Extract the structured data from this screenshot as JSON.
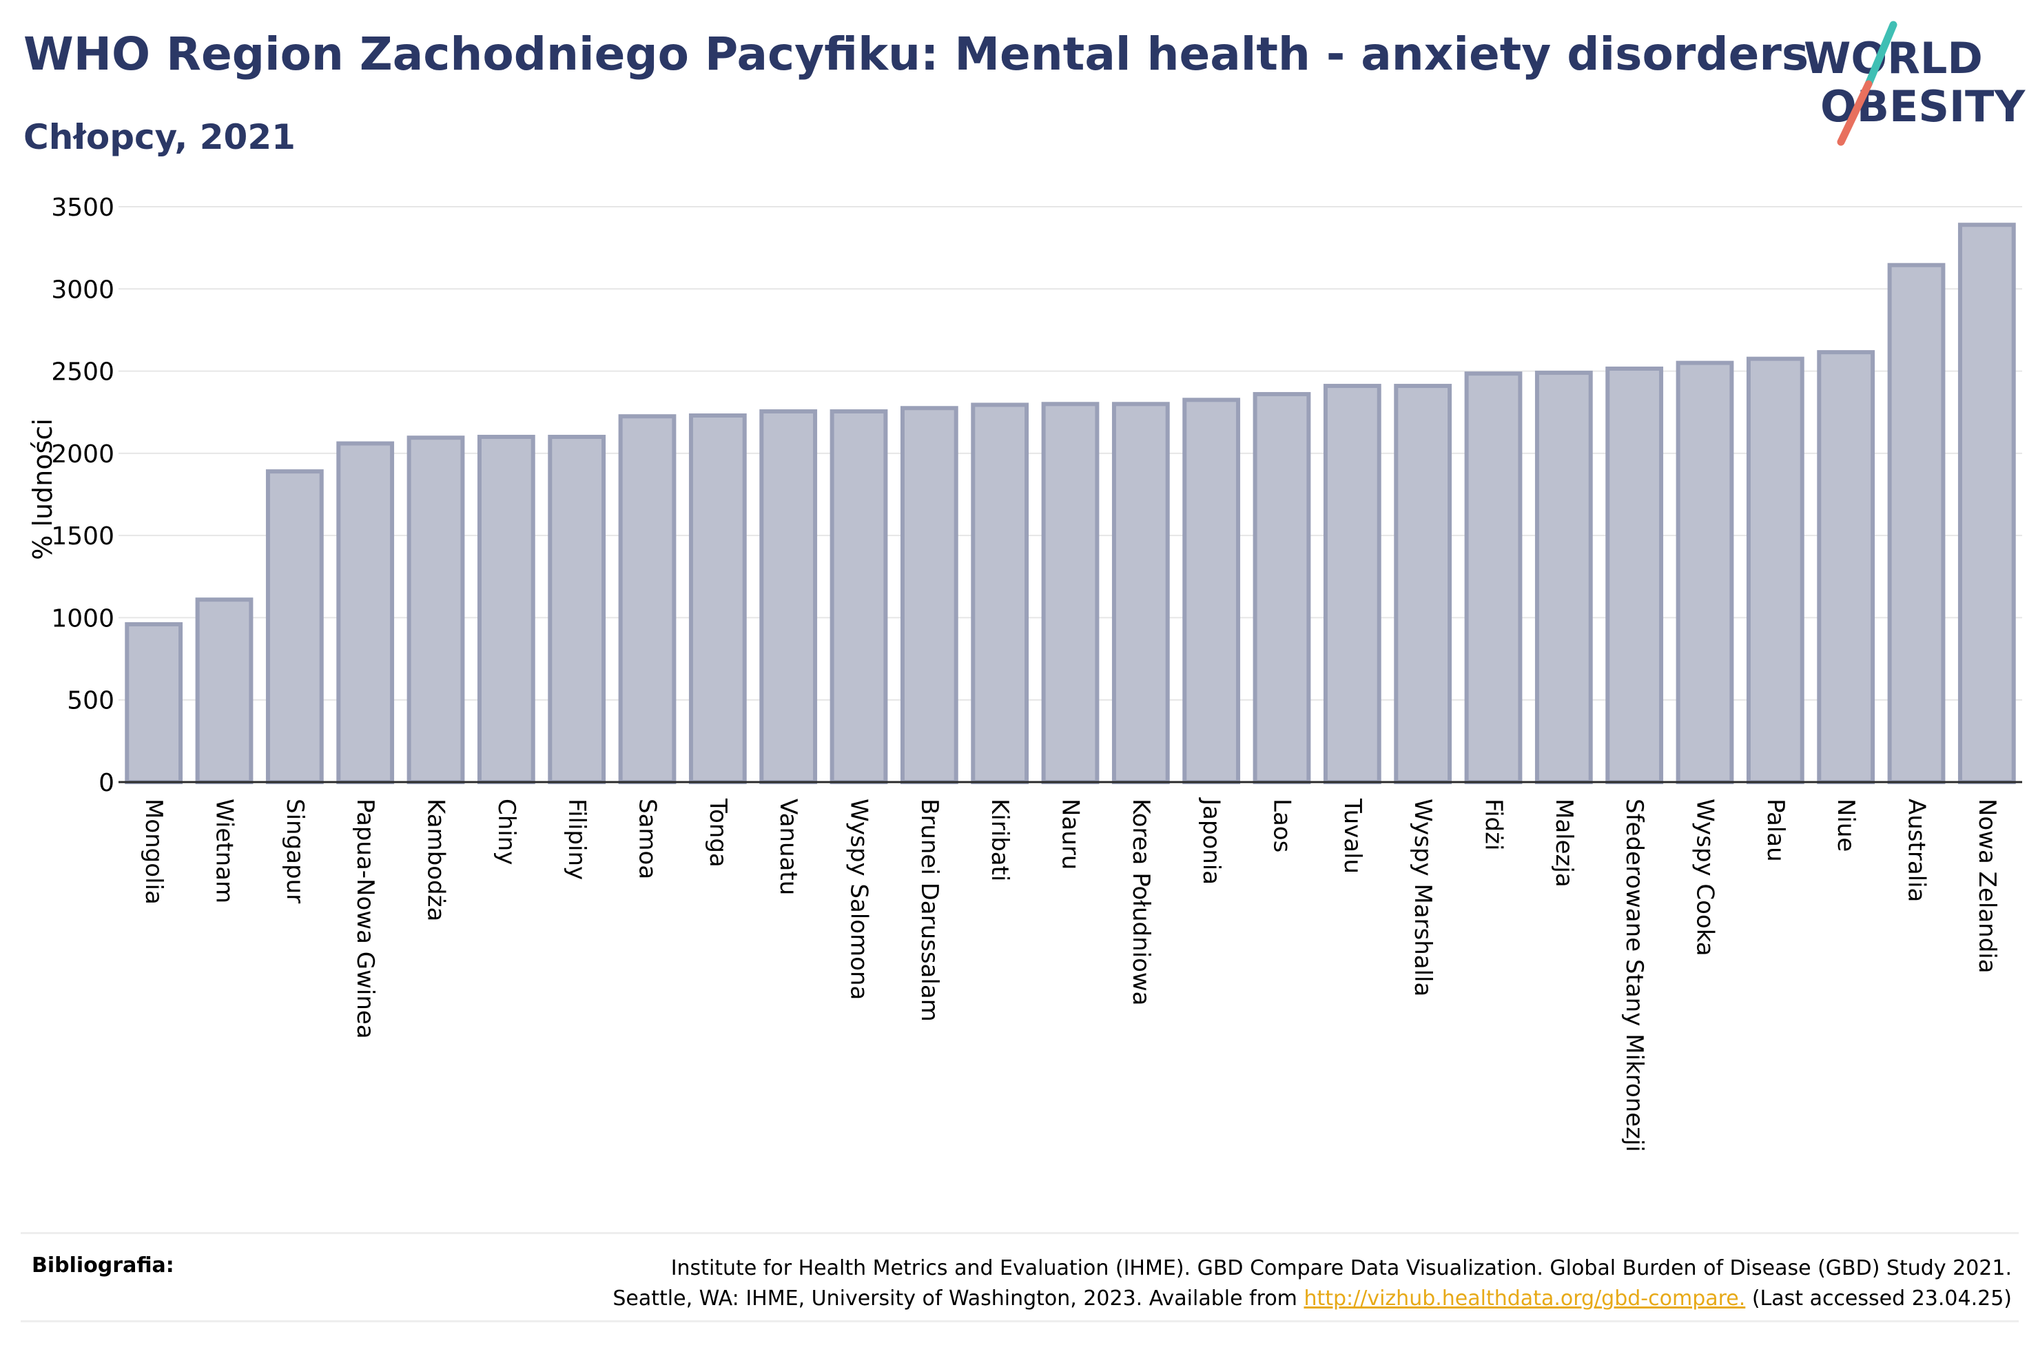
{
  "header": {
    "title": "WHO Region Zachodniego Pacyfiku: Mental health - anxiety disorders",
    "subtitle": "Chłopcy, 2021"
  },
  "logo": {
    "line1": "WORLD",
    "line2": "OBESITY",
    "colors": {
      "text": "#2b3866",
      "slash_top": "#3fbfb4",
      "slash_bottom": "#e8705e"
    }
  },
  "chart_data": {
    "type": "bar",
    "ylabel": "% ludności",
    "xlabel": "",
    "ylim": [
      0,
      3500
    ],
    "yticks": [
      0,
      500,
      1000,
      1500,
      2000,
      2500,
      3000,
      3500
    ],
    "grid": true,
    "bar_color": "#bcc0cf",
    "bar_edge_color": "#9aa0b8",
    "categories": [
      "Mongolia",
      "Wietnam",
      "Singapur",
      "Papua-Nowa Gwinea",
      "Kambodża",
      "Chiny",
      "Filipiny",
      "Samoa",
      "Tonga",
      "Vanuatu",
      "Wyspy Salomona",
      "Brunei Darussalam",
      "Kiribati",
      "Nauru",
      "Korea Południowa",
      "Japonia",
      "Laos",
      "Tuvalu",
      "Wyspy Marshalla",
      "Fidżi",
      "Malezja",
      "Sfederowane Stany Mikronezji",
      "Wyspy Cooka",
      "Palau",
      "Niue",
      "Australia",
      "Nowa Zelandia"
    ],
    "values": [
      960,
      1110,
      1890,
      2060,
      2095,
      2100,
      2100,
      2225,
      2230,
      2255,
      2255,
      2275,
      2295,
      2300,
      2300,
      2325,
      2360,
      2410,
      2410,
      2485,
      2490,
      2515,
      2550,
      2575,
      2615,
      3145,
      3390
    ]
  },
  "footer": {
    "label": "Bibliografia:",
    "line1": "Institute for Health Metrics and Evaluation (IHME). GBD Compare Data Visualization. Global Burden of Disease (GBD) Study 2021.",
    "line2_prefix": "Seattle, WA: IHME, University of Washington, 2023. Available from ",
    "link": "http://vizhub.healthdata.org/gbd-compare.",
    "line2_suffix": " (Last accessed 23.04.25)"
  }
}
